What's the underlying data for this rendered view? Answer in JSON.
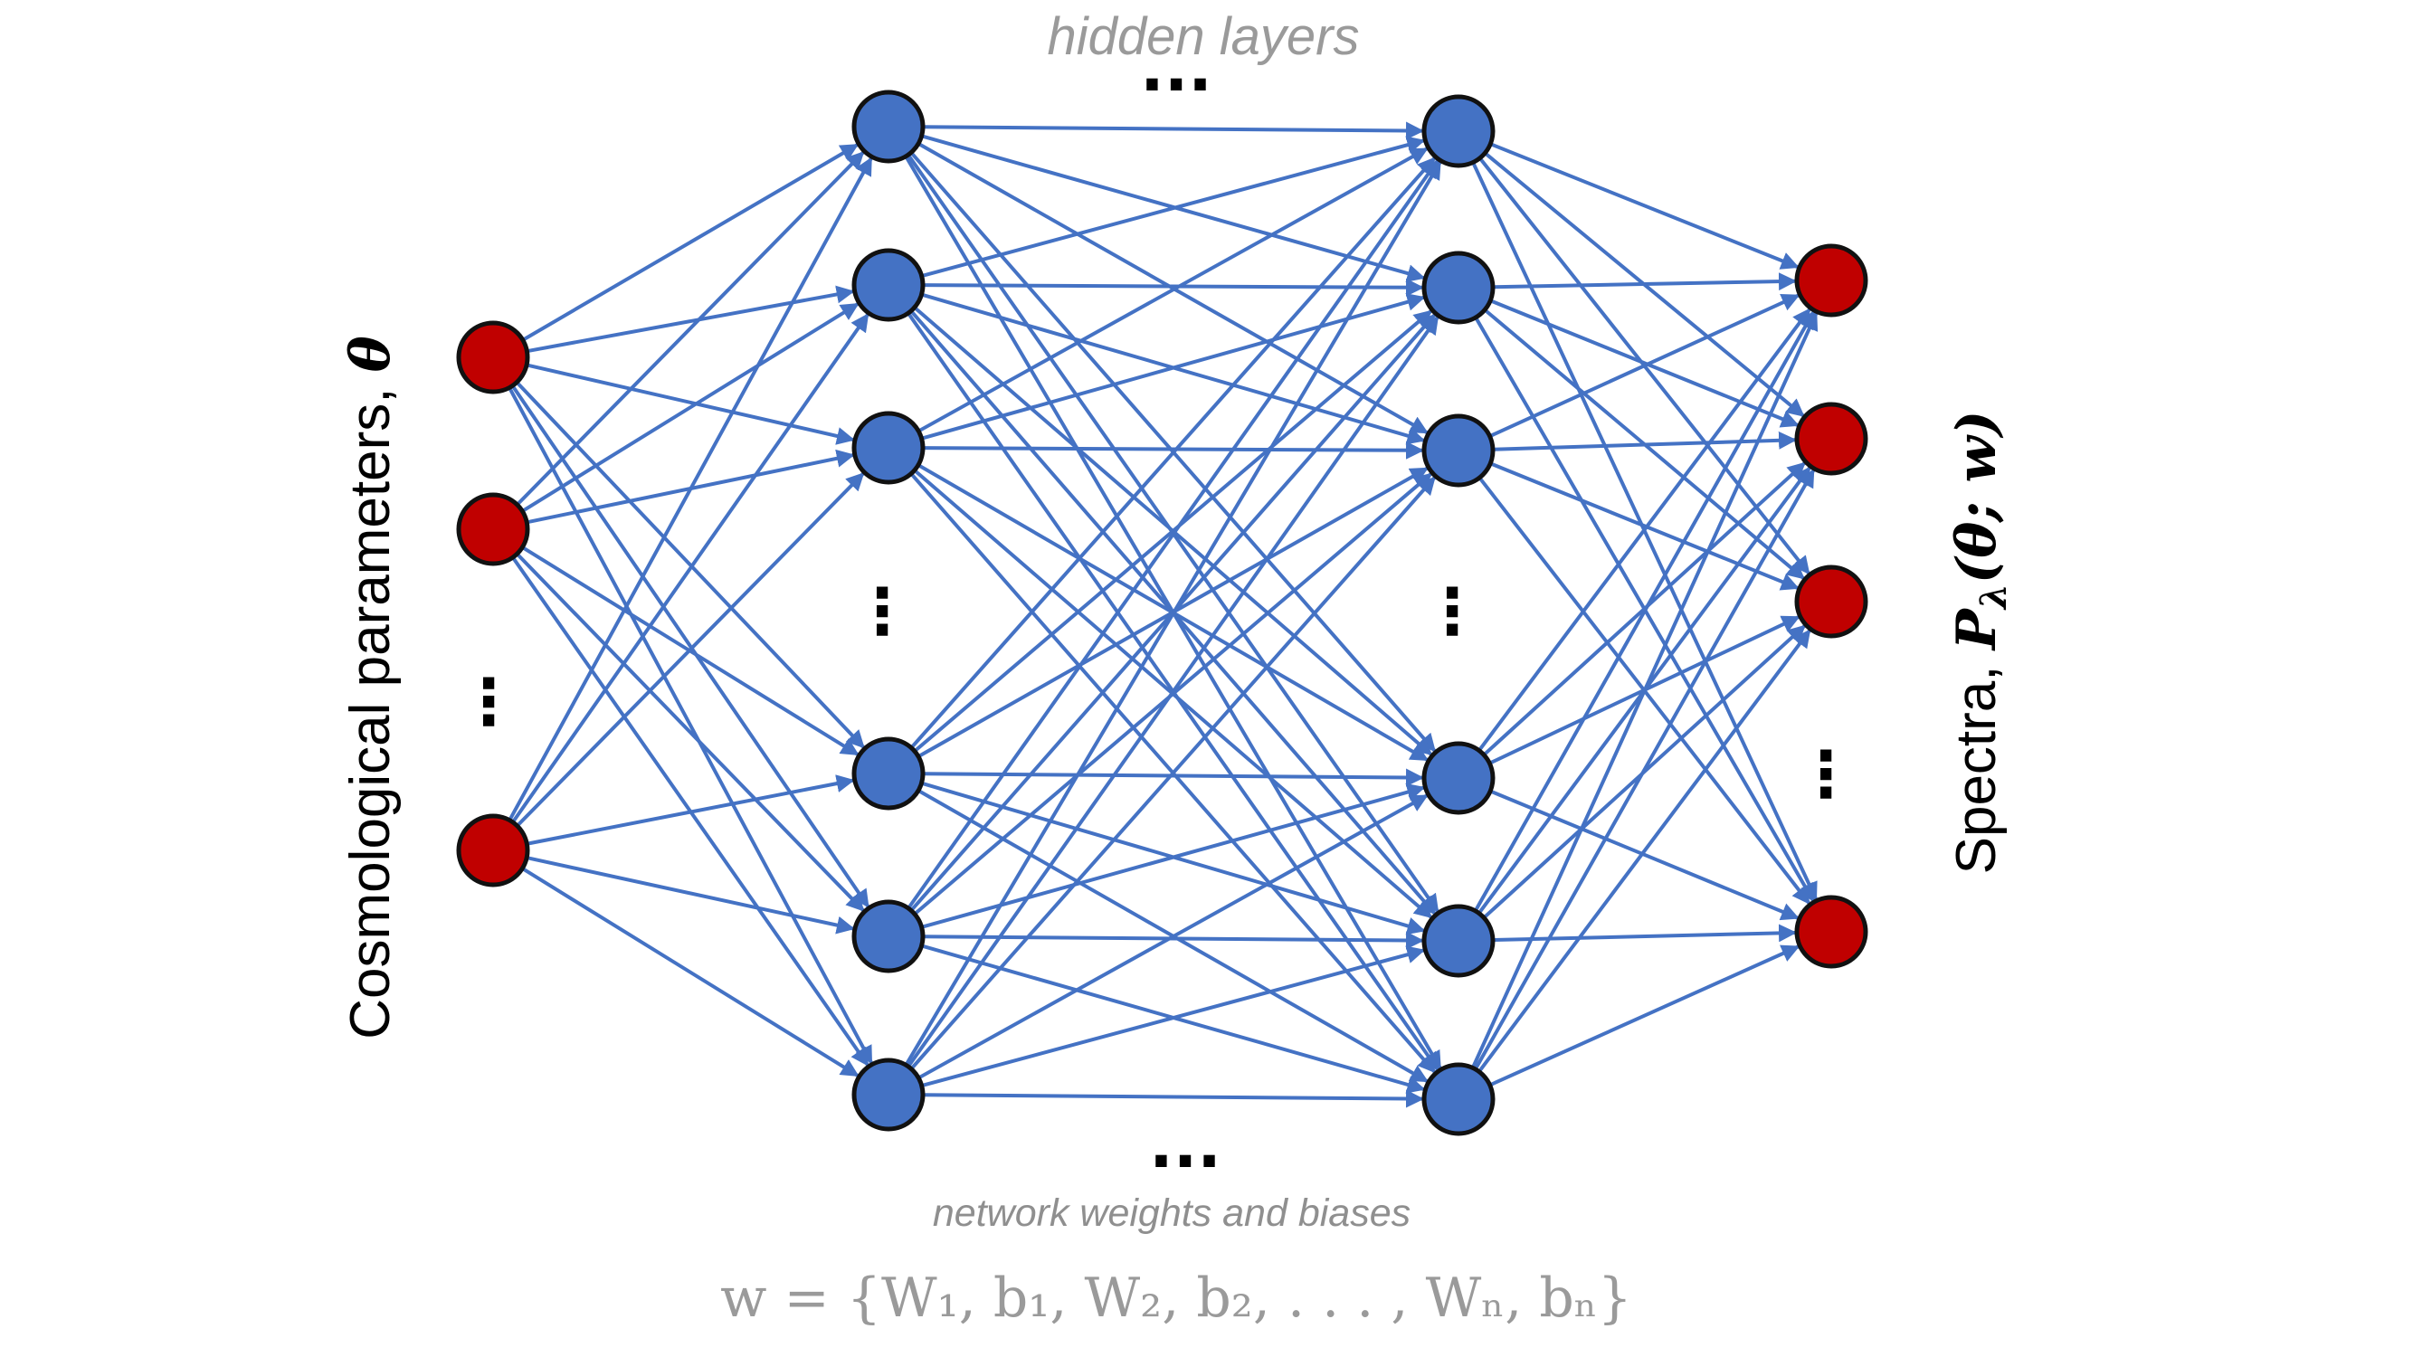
{
  "labels": {
    "hidden_layers": "hidden layers",
    "network_weights": "network weights and biases",
    "weights_formula": "w = {W₁, b₁, W₂, b₂, . . . , Wₙ, bₙ}",
    "input_axis_text": "Cosmological parameters, ",
    "input_axis_symbol": "θ",
    "output_axis_text": "Spectra, ",
    "output_axis_symbol": "P",
    "output_axis_subscript": "λ",
    "output_axis_args": "(θ; w)",
    "ellipsis_horizontal": "...",
    "ellipsis_vertical": "⋮"
  },
  "colors": {
    "edge": "#4472c4",
    "hidden_node": "#4472c4",
    "io_node": "#c00000",
    "node_outline": "#111111"
  },
  "network": {
    "input_nodes": 3,
    "hidden_layer_1_nodes": 6,
    "hidden_layer_2_nodes": 6,
    "output_nodes": 4,
    "fully_connected": true
  }
}
